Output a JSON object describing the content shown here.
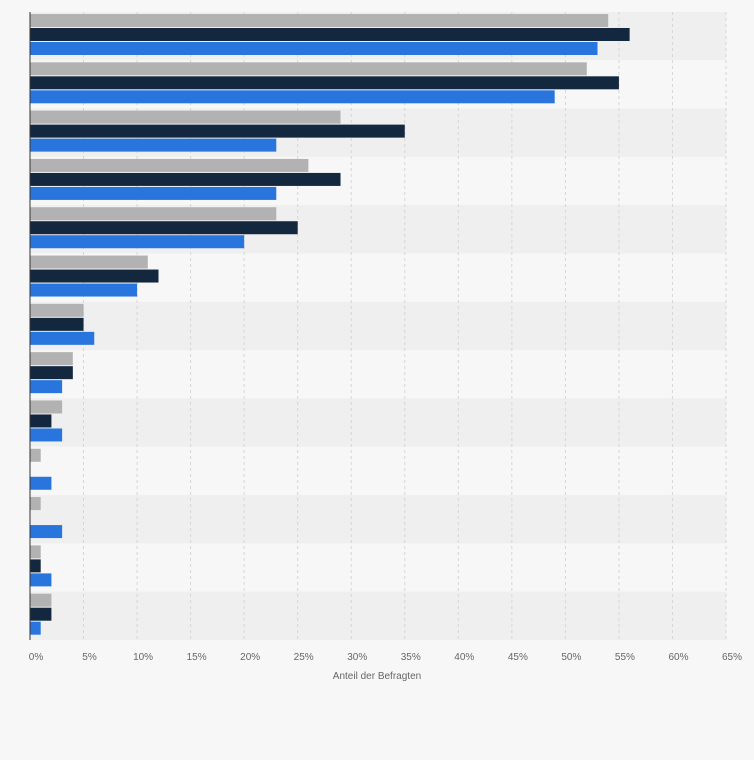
{
  "chart_data": {
    "type": "bar",
    "orientation": "horizontal",
    "xlabel": "Anteil der Befragten",
    "x_tick_labels": [
      "0%",
      "5%",
      "10%",
      "15%",
      "20%",
      "25%",
      "30%",
      "35%",
      "40%",
      "45%",
      "50%",
      "55%",
      "60%",
      "65%"
    ],
    "xlim": [
      0,
      65
    ],
    "grid": true,
    "category_count": 13,
    "series": [
      {
        "color": "#b2b2b2",
        "values": [
          54,
          52,
          29,
          26,
          23,
          11,
          5,
          4,
          3,
          1,
          1,
          1,
          2
        ]
      },
      {
        "color": "#13283f",
        "values": [
          56,
          55,
          35,
          29,
          25,
          12,
          5,
          4,
          2,
          0,
          0,
          1,
          2
        ]
      },
      {
        "color": "#2876dd",
        "values": [
          53,
          49,
          23,
          23,
          20,
          10,
          6,
          3,
          3,
          2,
          3,
          2,
          1
        ]
      }
    ]
  }
}
